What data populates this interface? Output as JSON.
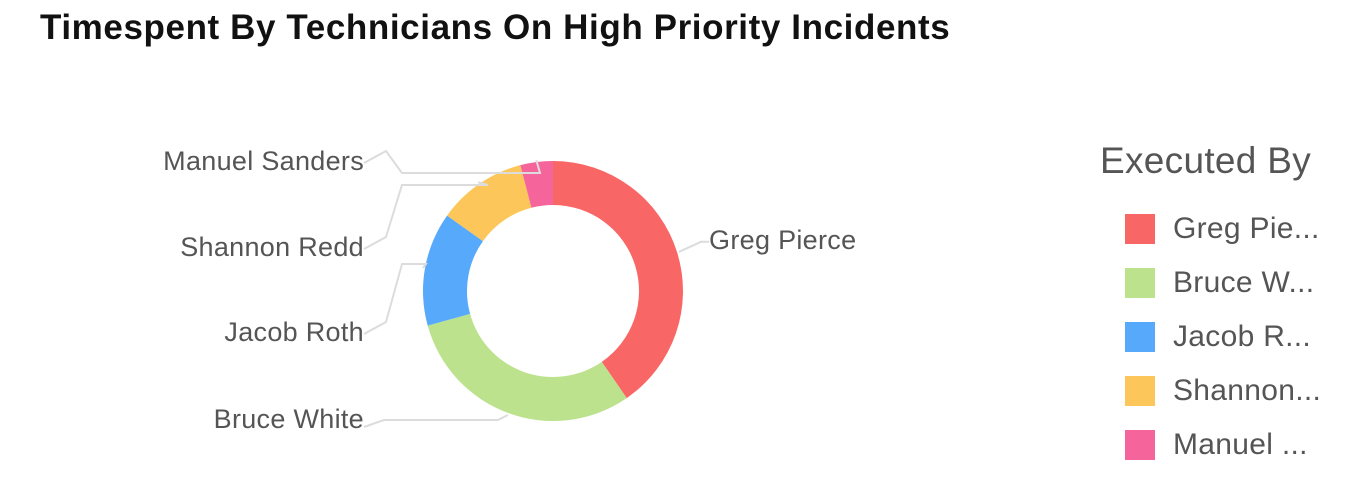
{
  "chart_data": {
    "type": "pie",
    "variant": "donut",
    "title": "Timespent By Technicians On High Priority Incidents",
    "slices": [
      {
        "label": "Greg Pierce",
        "value": 40,
        "color": "#f96666"
      },
      {
        "label": "Bruce White",
        "value": 30,
        "color": "#bde28e"
      },
      {
        "label": "Jacob Roth",
        "value": 14,
        "color": "#56a9fb"
      },
      {
        "label": "Shannon Redd",
        "value": 11,
        "color": "#fdc65a"
      },
      {
        "label": "Manuel Sanders",
        "value": 4,
        "color": "#f5659c"
      }
    ],
    "legend": {
      "title": "Executed By",
      "placement": "right",
      "items": [
        "Greg Pie...",
        "Bruce W...",
        "Jacob R...",
        "Shannon...",
        "Manuel ..."
      ]
    }
  }
}
